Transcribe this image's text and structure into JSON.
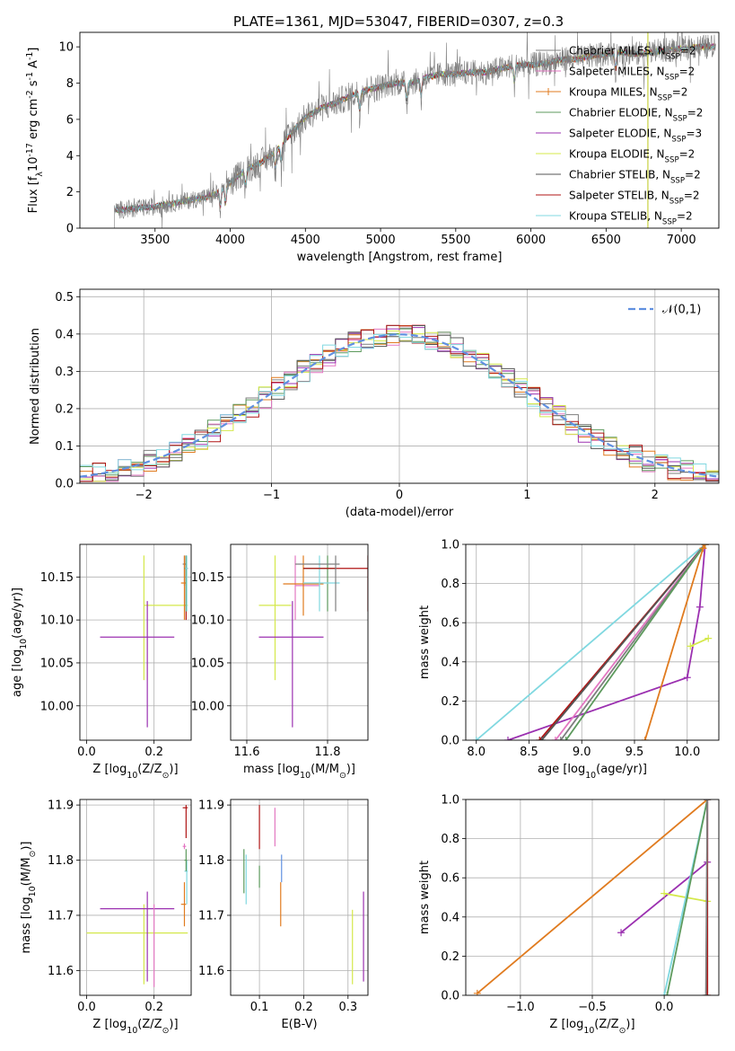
{
  "figure": {
    "title": "PLATE=1361, MJD=53047, FIBERID=0307, z=0.3"
  },
  "series_styles": [
    {
      "name": "Chabrier MILES",
      "color": "#7f7f7f"
    },
    {
      "name": "Salpeter MILES",
      "color": "#e377c2"
    },
    {
      "name": "Kroupa MILES",
      "color": "#e07b1f"
    },
    {
      "name": "Chabrier ELODIE",
      "color": "#5d9a5d"
    },
    {
      "name": "Salpeter ELODIE",
      "color": "#9b30b0"
    },
    {
      "name": "Kroupa ELODIE",
      "color": "#d4e84a"
    },
    {
      "name": "Chabrier STELIB",
      "color": "#555555"
    },
    {
      "name": "Salpeter STELIB",
      "color": "#b01515"
    },
    {
      "name": "Kroupa STELIB",
      "color": "#80d8e0"
    }
  ],
  "chart_data": [
    {
      "id": "spectrum",
      "type": "line",
      "title": "PLATE=1361, MJD=53047, FIBERID=0307, z=0.3",
      "xlabel": "wavelength [Angstrom, rest frame]",
      "ylabel": "Flux [f$_\\lambda$10$^{-17}$ erg cm$^{-2}$ s$^{-1}$ A$^{-1}$]",
      "xlim": [
        3000,
        7250
      ],
      "ylim": [
        0,
        10.8
      ],
      "xticks": [
        3500,
        4000,
        4500,
        5000,
        5500,
        6000,
        6500,
        7000
      ],
      "yticks": [
        0,
        2,
        4,
        6,
        8,
        10
      ],
      "grid": false,
      "legend": "upper right",
      "legend_entries": [
        "Chabrier MILES, N$_{SSP}$=2",
        "Salpeter MILES, N$_{SSP}$=2",
        "Kroupa MILES, N$_{SSP}$=2",
        "Chabrier ELODIE, N$_{SSP}$=2",
        "Salpeter ELODIE, N$_{SSP}$=3",
        "Kroupa ELODIE, N$_{SSP}$=2",
        "Chabrier STELIB, N$_{SSP}$=2",
        "Salpeter STELIB, N$_{SSP}$=2",
        "Kroupa STELIB, N$_{SSP}$=2"
      ],
      "continuum": [
        [
          3230,
          1.0
        ],
        [
          3400,
          1.1
        ],
        [
          3500,
          1.2
        ],
        [
          3600,
          1.35
        ],
        [
          3700,
          1.5
        ],
        [
          3800,
          1.65
        ],
        [
          3900,
          1.85
        ],
        [
          4000,
          2.5
        ],
        [
          4100,
          3.2
        ],
        [
          4200,
          3.6
        ],
        [
          4300,
          4.2
        ],
        [
          4400,
          5.2
        ],
        [
          4500,
          6.1
        ],
        [
          4600,
          6.6
        ],
        [
          4700,
          6.9
        ],
        [
          4800,
          7.3
        ],
        [
          4900,
          7.6
        ],
        [
          5000,
          7.8
        ],
        [
          5100,
          8.0
        ],
        [
          5200,
          8.0
        ],
        [
          5300,
          8.3
        ],
        [
          5400,
          8.5
        ],
        [
          5500,
          8.5
        ],
        [
          5600,
          8.6
        ],
        [
          5700,
          8.6
        ],
        [
          5800,
          8.8
        ],
        [
          5900,
          9.0
        ],
        [
          6000,
          9.0
        ],
        [
          6100,
          9.1
        ],
        [
          6200,
          9.3
        ],
        [
          6300,
          9.3
        ],
        [
          6400,
          9.5
        ],
        [
          6500,
          9.6
        ],
        [
          6600,
          9.7
        ],
        [
          6700,
          9.6
        ],
        [
          6800,
          9.7
        ],
        [
          6900,
          9.8
        ],
        [
          7000,
          9.9
        ],
        [
          7100,
          10.0
        ],
        [
          7200,
          10.0
        ]
      ]
    },
    {
      "id": "residuals",
      "type": "line",
      "xlabel": "(data-model)/error",
      "ylabel": "Normed distribution",
      "xlim": [
        -2.5,
        2.5
      ],
      "ylim": [
        0,
        0.52
      ],
      "xticks": [
        -2,
        -1,
        0,
        1,
        2
      ],
      "yticks": [
        0.0,
        0.1,
        0.2,
        0.3,
        0.4,
        0.5
      ],
      "grid": true,
      "legend": "upper right",
      "legend_entries": [
        "$\\mathcal{N}(0,1)$"
      ],
      "reference_curve": {
        "name": "$\\mathcal{N}(0,1)$",
        "color": "#6090e0",
        "style": "dashed"
      }
    },
    {
      "id": "age-vs-Z",
      "type": "scatter",
      "xlabel": "Z [log$_{10}$(Z/Z$_\\odot$)]",
      "ylabel": "age  [log$_{10}$(age/yr)]",
      "xlim": [
        -0.02,
        0.31
      ],
      "ylim": [
        9.96,
        10.188
      ],
      "xticks": [
        0.0,
        0.2
      ],
      "yticks": [
        10.0,
        10.05,
        10.1,
        10.15
      ],
      "grid": true,
      "points": [
        {
          "color": "#d4e84a",
          "x": 0.17,
          "y": 10.117,
          "xerr": [
            0.17,
            0.3
          ],
          "yerr": [
            10.03,
            10.175
          ]
        },
        {
          "color": "#9b30b0",
          "x": 0.18,
          "y": 10.08,
          "xerr": [
            0.04,
            0.26
          ],
          "yerr": [
            9.975,
            10.122
          ]
        },
        {
          "color": "#7f7f7f",
          "x": 0.29,
          "y": 10.165,
          "xerr": [
            0.285,
            0.295
          ],
          "yerr": [
            10.14,
            10.175
          ]
        },
        {
          "color": "#b01515",
          "x": 0.295,
          "y": 10.16,
          "xerr": [
            0.29,
            0.3
          ],
          "yerr": [
            10.1,
            10.175
          ]
        },
        {
          "color": "#e07b1f",
          "x": 0.29,
          "y": 10.143,
          "xerr": [
            0.28,
            0.295
          ],
          "yerr": [
            10.1,
            10.175
          ]
        },
        {
          "color": "#5d9a5d",
          "x": 0.295,
          "y": 10.16,
          "xerr": [
            0.29,
            0.298
          ],
          "yerr": [
            10.11,
            10.175
          ]
        },
        {
          "color": "#80d8e0",
          "x": 0.297,
          "y": 10.16,
          "xerr": [
            0.292,
            0.3
          ],
          "yerr": [
            10.11,
            10.175
          ]
        }
      ]
    },
    {
      "id": "age-vs-mass",
      "type": "scatter",
      "xlabel": "mass [log$_{10}$(M/M$_\\odot$)]",
      "xlim": [
        11.56,
        11.9
      ],
      "ylim": [
        9.96,
        10.188
      ],
      "xticks": [
        11.6,
        11.8
      ],
      "yticks": [
        10.0,
        10.05,
        10.1,
        10.15
      ],
      "grid": true,
      "points": [
        {
          "color": "#d4e84a",
          "x": 11.67,
          "y": 10.117,
          "xerr": [
            11.63,
            11.71
          ],
          "yerr": [
            10.03,
            10.175
          ]
        },
        {
          "color": "#9b30b0",
          "x": 11.713,
          "y": 10.08,
          "xerr": [
            11.63,
            11.79
          ],
          "yerr": [
            9.975,
            10.122
          ]
        },
        {
          "color": "#e377c2",
          "x": 11.72,
          "y": 10.14,
          "xerr": [
            11.72,
            11.78
          ],
          "yerr": [
            10.1,
            10.175
          ]
        },
        {
          "color": "#e07b1f",
          "x": 11.74,
          "y": 10.142,
          "xerr": [
            11.69,
            11.79
          ],
          "yerr": [
            10.105,
            10.175
          ]
        },
        {
          "color": "#5d9a5d",
          "x": 11.8,
          "y": 10.16,
          "xerr": [
            11.74,
            11.82
          ],
          "yerr": [
            10.11,
            10.175
          ]
        },
        {
          "color": "#80d8e0",
          "x": 11.78,
          "y": 10.143,
          "xerr": [
            11.74,
            11.83
          ],
          "yerr": [
            10.11,
            10.175
          ]
        },
        {
          "color": "#b01515",
          "x": 11.9,
          "y": 10.16,
          "xerr": [
            11.74,
            11.9
          ],
          "yerr": [
            10.11,
            10.175
          ]
        },
        {
          "color": "#7f7f7f",
          "x": 11.82,
          "y": 10.165,
          "xerr": [
            11.72,
            11.83
          ],
          "yerr": [
            10.11,
            10.175
          ]
        }
      ]
    },
    {
      "id": "cumulative-mass-vs-age",
      "type": "line",
      "xlabel": "age  [log$_{10}$(age/yr)]",
      "ylabel": "mass weight",
      "xlim": [
        7.9,
        10.3
      ],
      "ylim": [
        0,
        1.0
      ],
      "xticks": [
        8.0,
        8.5,
        9.0,
        9.5,
        10.0
      ],
      "yticks": [
        0.0,
        0.2,
        0.4,
        0.6,
        0.8,
        1.0
      ],
      "grid": true,
      "series": [
        {
          "color": "#80d8e0",
          "x": [
            8.0,
            10.17
          ],
          "y": [
            0.0,
            1.0
          ]
        },
        {
          "color": "#9b30b0",
          "x": [
            8.3,
            10.0,
            10.12,
            10.17
          ],
          "y": [
            0.0,
            0.32,
            0.68,
            1.0
          ]
        },
        {
          "color": "#b01515",
          "x": [
            8.6,
            10.17
          ],
          "y": [
            0.0,
            1.0
          ]
        },
        {
          "color": "#555555",
          "x": [
            8.62,
            10.17
          ],
          "y": [
            0.0,
            1.0
          ]
        },
        {
          "color": "#e377c2",
          "x": [
            8.75,
            10.17
          ],
          "y": [
            0.0,
            1.0
          ]
        },
        {
          "color": "#7f7f7f",
          "x": [
            8.8,
            10.17
          ],
          "y": [
            0.0,
            1.0
          ]
        },
        {
          "color": "#5d9a5d",
          "x": [
            8.85,
            10.17
          ],
          "y": [
            0.0,
            1.0
          ]
        },
        {
          "color": "#e07b1f",
          "x": [
            9.6,
            10.15,
            10.17
          ],
          "y": [
            0.0,
            0.98,
            1.0
          ]
        },
        {
          "color": "#d4e84a",
          "x": [
            10.03,
            10.2
          ],
          "y": [
            0.48,
            0.52
          ]
        }
      ]
    },
    {
      "id": "mass-vs-Z",
      "type": "scatter",
      "xlabel": "Z [log$_{10}$(Z/Z$_\\odot$)]",
      "ylabel": "mass [log$_{10}$(M/M$_\\odot$)]",
      "xlim": [
        -0.02,
        0.31
      ],
      "ylim": [
        11.555,
        11.91
      ],
      "xticks": [
        0.0,
        0.2
      ],
      "yticks": [
        11.6,
        11.7,
        11.8,
        11.9
      ],
      "grid": true,
      "points": [
        {
          "color": "#d4e84a",
          "x": 0.17,
          "y": 11.668,
          "xerr": [
            0.0,
            0.3
          ],
          "yerr": [
            11.575,
            11.72
          ]
        },
        {
          "color": "#9b30b0",
          "x": 0.18,
          "y": 11.712,
          "xerr": [
            0.04,
            0.26
          ],
          "yerr": [
            11.58,
            11.743
          ]
        },
        {
          "color": "#e377c2",
          "x": 0.2,
          "y": 11.712,
          "xerr": [
            0.2,
            0.2
          ],
          "yerr": [
            11.57,
            11.72
          ]
        },
        {
          "color": "#e07b1f",
          "x": 0.29,
          "y": 11.72,
          "xerr": [
            0.28,
            0.295
          ],
          "yerr": [
            11.68,
            11.76
          ]
        },
        {
          "color": "#80d8e0",
          "x": 0.297,
          "y": 11.78,
          "xerr": [
            0.29,
            0.3
          ],
          "yerr": [
            11.72,
            11.8
          ]
        },
        {
          "color": "#5d9a5d",
          "x": 0.295,
          "y": 11.8,
          "xerr": [
            0.29,
            0.298
          ],
          "yerr": [
            11.78,
            11.82
          ]
        },
        {
          "color": "#e377c2",
          "x": 0.29,
          "y": 11.825,
          "xerr": [
            0.285,
            0.295
          ],
          "yerr": [
            11.82,
            11.83
          ]
        },
        {
          "color": "#b01515",
          "x": 0.295,
          "y": 11.895,
          "xerr": [
            0.285,
            0.3
          ],
          "yerr": [
            11.84,
            11.9
          ]
        }
      ]
    },
    {
      "id": "mass-vs-EBV",
      "type": "scatter",
      "xlabel": "E(B-V)",
      "xlim": [
        0.035,
        0.345
      ],
      "ylim": [
        11.555,
        11.91
      ],
      "xticks": [
        0.1,
        0.2,
        0.3
      ],
      "yticks": [
        11.6,
        11.7,
        11.8,
        11.9
      ],
      "grid": true,
      "points": [
        {
          "color": "#5d9a5d",
          "x": 0.065,
          "y": 11.78,
          "yerr": [
            11.74,
            11.82
          ]
        },
        {
          "color": "#80d8e0",
          "x": 0.07,
          "y": 11.77,
          "yerr": [
            11.72,
            11.81
          ]
        },
        {
          "color": "#b01515",
          "x": 0.1,
          "y": 11.86,
          "yerr": [
            11.82,
            11.9
          ]
        },
        {
          "color": "#5d9a5d",
          "x": 0.1,
          "y": 11.77,
          "yerr": [
            11.75,
            11.79
          ]
        },
        {
          "color": "#e377c2",
          "x": 0.135,
          "y": 11.86,
          "yerr": [
            11.825,
            11.895
          ]
        },
        {
          "color": "#e07b1f",
          "x": 0.148,
          "y": 11.72,
          "yerr": [
            11.68,
            11.76
          ]
        },
        {
          "color": "#6090e0",
          "x": 0.15,
          "y": 11.78,
          "yerr": [
            11.76,
            11.81
          ]
        },
        {
          "color": "#d4e84a",
          "x": 0.31,
          "y": 11.64,
          "yerr": [
            11.575,
            11.71
          ]
        },
        {
          "color": "#9b30b0",
          "x": 0.335,
          "y": 11.65,
          "yerr": [
            11.58,
            11.743
          ]
        }
      ]
    },
    {
      "id": "cumulative-mass-vs-Z",
      "type": "line",
      "xlabel": "Z [log$_{10}$(Z/Z$_\\odot$)]",
      "ylabel": "mass weight",
      "xlim": [
        -1.38,
        0.38
      ],
      "ylim": [
        0,
        1.0
      ],
      "xticks": [
        -1.0,
        -0.5,
        0.0
      ],
      "yticks": [
        0.0,
        0.2,
        0.4,
        0.6,
        0.8,
        1.0
      ],
      "grid": true,
      "series": [
        {
          "color": "#e07b1f",
          "x": [
            -1.3,
            0.3
          ],
          "y": [
            0.01,
            1.0
          ]
        },
        {
          "color": "#9b30b0",
          "x": [
            -0.3,
            0.3,
            0.3
          ],
          "y": [
            0.32,
            0.68,
            1.0
          ]
        },
        {
          "color": "#d4e84a",
          "x": [
            0.0,
            0.3
          ],
          "y": [
            0.52,
            0.48
          ]
        },
        {
          "color": "#80d8e0",
          "x": [
            0.0,
            0.3
          ],
          "y": [
            0.0,
            1.0
          ]
        },
        {
          "color": "#5d9a5d",
          "x": [
            0.02,
            0.3
          ],
          "y": [
            0.0,
            1.0
          ]
        },
        {
          "color": "#b01515",
          "x": [
            0.3,
            0.3
          ],
          "y": [
            0.0,
            1.0
          ]
        },
        {
          "color": "#7f7f7f",
          "x": [
            0.29,
            0.3
          ],
          "y": [
            0.0,
            1.0
          ]
        }
      ]
    }
  ]
}
